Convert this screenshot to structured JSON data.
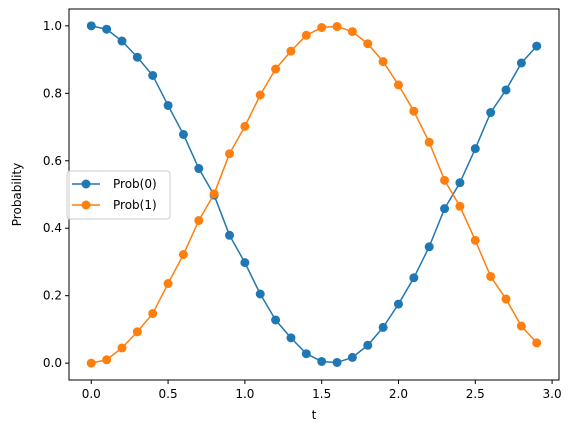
{
  "chart_data": {
    "type": "line",
    "title": "",
    "xlabel": "t",
    "ylabel": "Probability",
    "xlim": [
      -0.145,
      3.045
    ],
    "ylim": [
      -0.05,
      1.05
    ],
    "xticks": [
      0.0,
      0.5,
      1.0,
      1.5,
      2.0,
      2.5,
      3.0
    ],
    "xtick_labels": [
      "0.0",
      "0.5",
      "1.0",
      "1.5",
      "2.0",
      "2.5",
      "3.0"
    ],
    "yticks": [
      0.0,
      0.2,
      0.4,
      0.6,
      0.8,
      1.0
    ],
    "ytick_labels": [
      "0.0",
      "0.2",
      "0.4",
      "0.6",
      "0.8",
      "1.0"
    ],
    "grid": false,
    "legend_position": "center-left",
    "x": [
      0.0,
      0.1,
      0.2,
      0.3,
      0.4,
      0.5,
      0.6,
      0.7,
      0.8,
      0.9,
      1.0,
      1.1,
      1.2,
      1.3,
      1.4,
      1.5,
      1.6,
      1.7,
      1.8,
      1.9,
      2.0,
      2.1,
      2.2,
      2.3,
      2.4,
      2.5,
      2.6,
      2.7,
      2.8,
      2.9
    ],
    "series": [
      {
        "name": "Prob(0)",
        "color": "#1f77b4",
        "values": [
          1.0,
          0.99,
          0.955,
          0.907,
          0.853,
          0.764,
          0.678,
          0.577,
          0.498,
          0.379,
          0.298,
          0.205,
          0.128,
          0.075,
          0.028,
          0.005,
          0.002,
          0.017,
          0.053,
          0.106,
          0.175,
          0.253,
          0.345,
          0.458,
          0.535,
          0.636,
          0.743,
          0.81,
          0.89,
          0.94
        ]
      },
      {
        "name": "Prob(1)",
        "color": "#ff7f0e",
        "values": [
          0.0,
          0.01,
          0.045,
          0.093,
          0.147,
          0.236,
          0.322,
          0.423,
          0.502,
          0.621,
          0.702,
          0.795,
          0.872,
          0.925,
          0.972,
          0.995,
          0.998,
          0.983,
          0.947,
          0.894,
          0.825,
          0.747,
          0.655,
          0.542,
          0.465,
          0.364,
          0.257,
          0.19,
          0.11,
          0.06
        ]
      }
    ]
  }
}
